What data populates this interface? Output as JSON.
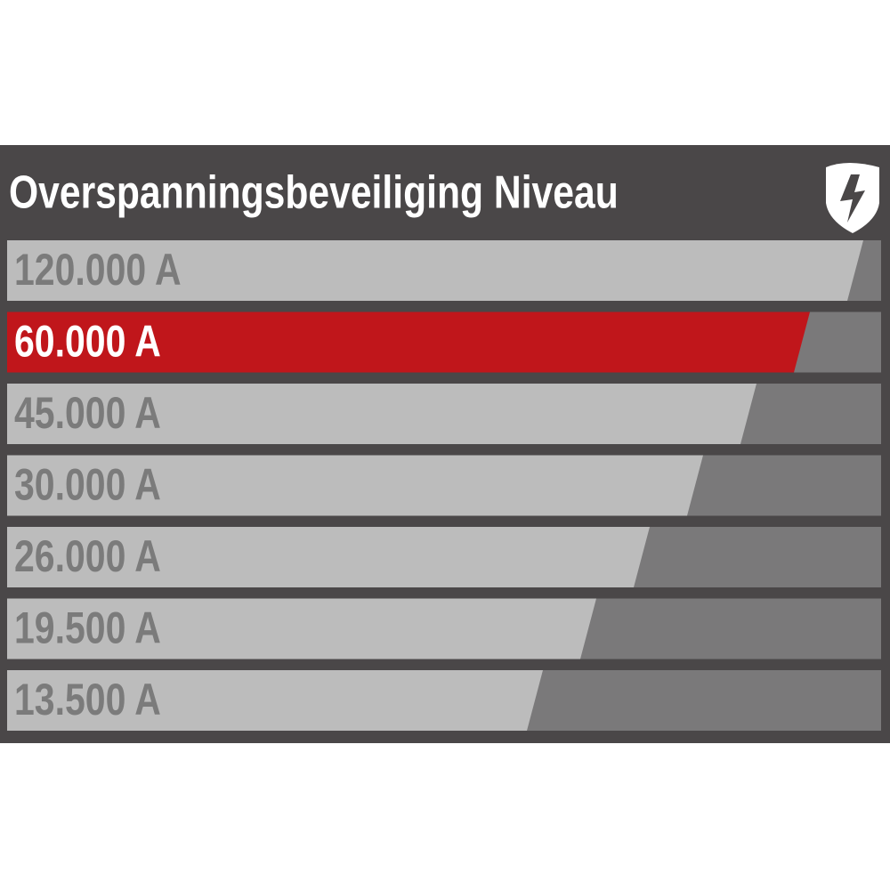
{
  "header": {
    "title": "Overspanningsbeveiliging Niveau"
  },
  "levels": [
    {
      "label": "120.000 A",
      "fill": "#bcbcbc",
      "text_color": "#7b7b7b"
    },
    {
      "label": "60.000 A",
      "fill": "#c0161b",
      "text_color": "#ffffff"
    },
    {
      "label": "45.000 A",
      "fill": "#bcbcbc",
      "text_color": "#7b7b7b"
    },
    {
      "label": "30.000 A",
      "fill": "#bcbcbc",
      "text_color": "#7b7b7b"
    },
    {
      "label": "26.000 A",
      "fill": "#bcbcbc",
      "text_color": "#7b7b7b"
    },
    {
      "label": "19.500 A",
      "fill": "#bcbcbc",
      "text_color": "#7b7b7b"
    },
    {
      "label": "13.500 A",
      "fill": "#bcbcbc",
      "text_color": "#7b7b7b"
    }
  ]
}
